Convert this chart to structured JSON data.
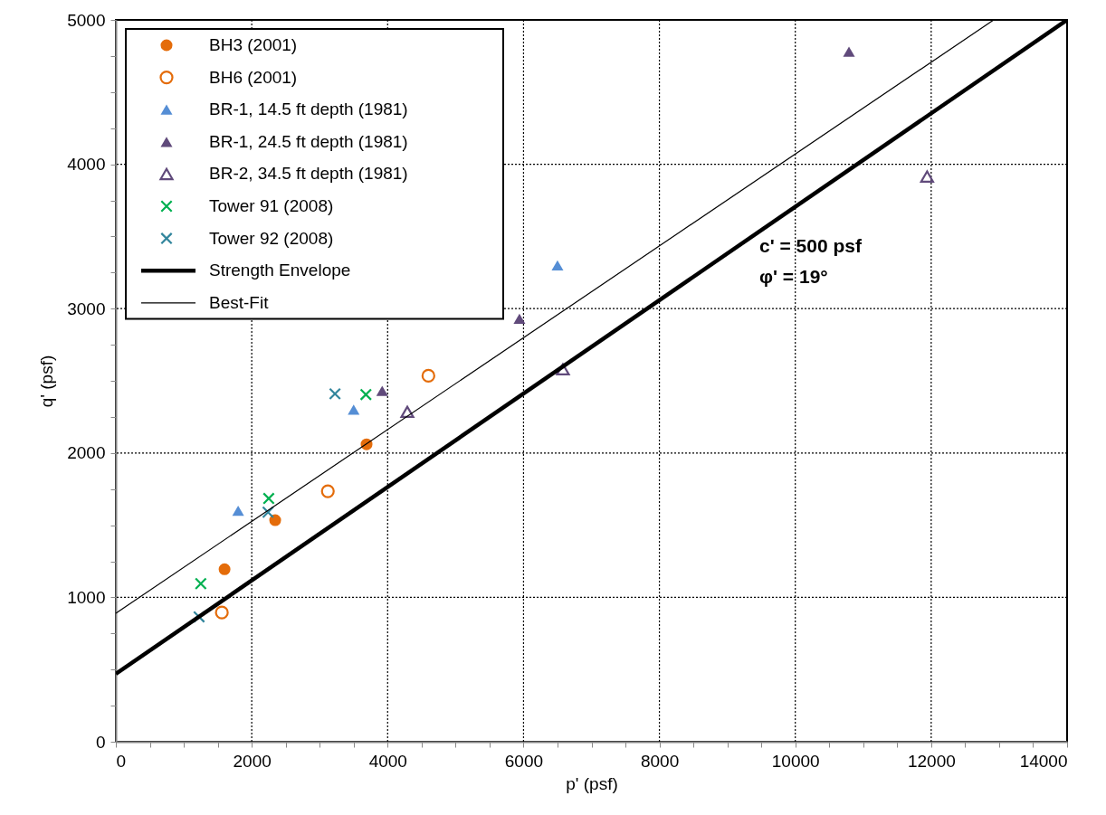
{
  "chart_data": {
    "type": "scatter",
    "xlabel": "p' (psf)",
    "ylabel": "q' (psf)",
    "xlim": [
      0,
      14000
    ],
    "ylim": [
      0,
      5000
    ],
    "xticks": [
      0,
      {
        "value": 500,
        "label": null
      },
      2000,
      {
        "value": 1000,
        "label": null
      },
      {
        "value": 1500,
        "label": null
      },
      {
        "value": 2500,
        "label": null
      },
      {
        "value": 3000,
        "label": null
      },
      {
        "value": 3500,
        "label": null
      },
      4000,
      {
        "value": 4500,
        "label": null
      },
      {
        "value": 5000,
        "label": null
      },
      {
        "value": 5500,
        "label": null
      },
      6000,
      {
        "value": 6500,
        "label": null
      },
      {
        "value": 7000,
        "label": null
      },
      {
        "value": 7500,
        "label": null
      },
      8000,
      {
        "value": 8500,
        "label": null
      },
      {
        "value": 9000,
        "label": null
      },
      {
        "value": 9500,
        "label": null
      },
      10000,
      {
        "value": 10500,
        "label": null
      },
      {
        "value": 11000,
        "label": null
      },
      {
        "value": 11500,
        "label": null
      },
      12000,
      {
        "value": 12500,
        "label": null
      },
      {
        "value": 13000,
        "label": null
      },
      {
        "value": 13500,
        "label": null
      },
      14000
    ],
    "yticks": [
      0,
      {
        "value": 250,
        "label": null
      },
      {
        "value": 500,
        "label": null
      },
      {
        "value": 750,
        "label": null
      },
      1000,
      {
        "value": 1250,
        "label": null
      },
      {
        "value": 1500,
        "label": null
      },
      {
        "value": 1750,
        "label": null
      },
      2000,
      {
        "value": 2250,
        "label": null
      },
      {
        "value": 2500,
        "label": null
      },
      {
        "value": 2750,
        "label": null
      },
      3000,
      {
        "value": 3250,
        "label": null
      },
      {
        "value": 3500,
        "label": null
      },
      {
        "value": 3750,
        "label": null
      },
      4000,
      {
        "value": 4250,
        "label": null
      },
      {
        "value": 4500,
        "label": null
      },
      {
        "value": 4750,
        "label": null
      },
      5000
    ],
    "grid": true,
    "legend": "top left",
    "annotations": [
      "c' = 500 psf",
      "φ' = 19°"
    ],
    "series": [
      {
        "name": "BH3 (2001)",
        "marker": "circle",
        "color": "#e46c0a",
        "x": [
          1600,
          2345,
          3690
        ],
        "values": [
          1195,
          1535,
          2060
        ]
      },
      {
        "name": "BH6 (2001)",
        "marker": "circle-open",
        "color": "#e46c0a",
        "x": [
          1560,
          3120,
          4600
        ],
        "values": [
          895,
          1735,
          2535
        ]
      },
      {
        "name": "BR-1, 14.5 ft depth (1981)",
        "marker": "triangle",
        "color": "#558ed5",
        "x": [
          1800,
          3500,
          6500
        ],
        "values": [
          1600,
          2300,
          3300
        ]
      },
      {
        "name": "BR-1, 24.5 ft depth (1981)",
        "marker": "triangle",
        "color": "#604a7b",
        "x": [
          3920,
          5940,
          10790
        ],
        "values": [
          2430,
          2930,
          4780
        ]
      },
      {
        "name": "BR-2, 34.5 ft depth (1981)",
        "marker": "triangle-open",
        "color": "#604a7b",
        "x": [
          4290,
          6580,
          11940
        ],
        "values": [
          2285,
          2580,
          3915
        ]
      },
      {
        "name": "Tower 91 (2008)",
        "marker": "cross",
        "color": "#00b050",
        "x": [
          1250,
          2250,
          3680
        ],
        "values": [
          1095,
          1685,
          2405
        ]
      },
      {
        "name": "Tower 92 (2008)",
        "marker": "cross",
        "color": "#31859c",
        "x": [
          1225,
          2240,
          3225
        ],
        "values": [
          865,
          1590,
          2410
        ]
      },
      {
        "name": "Strength Envelope",
        "type": "line",
        "color": "#000000",
        "x": [
          0,
          14000
        ],
        "values": [
          470,
          5000
        ]
      },
      {
        "name": "Best-Fit",
        "type": "line",
        "color": "#000000",
        "x": [
          0,
          12920
        ],
        "values": [
          890,
          5000
        ]
      }
    ]
  }
}
